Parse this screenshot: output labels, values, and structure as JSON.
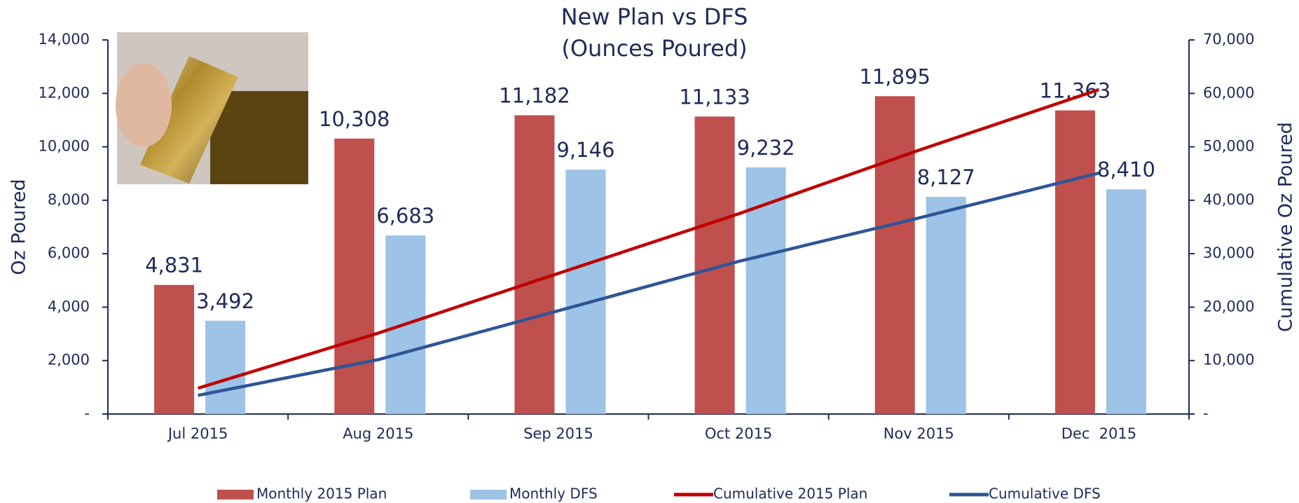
{
  "chart_data": {
    "type": "bar-line",
    "title": "New Plan vs DFS",
    "subtitle": "(Ounces Poured)",
    "ylabel": "Oz Poured",
    "y2label": "Cumulative Oz Poured",
    "categories": [
      "Jul 2015",
      "Aug 2015",
      "Sep 2015",
      "Oct 2015",
      "Nov 2015",
      "Dec  2015"
    ],
    "series": [
      {
        "name": "Monthly 2015 Plan",
        "type": "bar",
        "color": "#c0504d",
        "values": [
          4831,
          10308,
          11182,
          11133,
          11895,
          11363
        ],
        "value_labels": [
          "4,831",
          "10,308",
          "11,182",
          "11,133",
          "11,895",
          "11,363"
        ]
      },
      {
        "name": "Monthly DFS",
        "type": "bar",
        "color": "#9dc3e6",
        "values": [
          3492,
          6683,
          9146,
          9232,
          8127,
          8410
        ],
        "value_labels": [
          "3,492",
          "6,683",
          "9,146",
          "9,232",
          "8,127",
          "8,410"
        ]
      },
      {
        "name": "Cumulative 2015 Plan",
        "type": "line",
        "axis": "y2",
        "color": "#c00000",
        "values": [
          4831,
          15139,
          26321,
          37454,
          49349,
          60712
        ]
      },
      {
        "name": "Cumulative DFS",
        "type": "line",
        "axis": "y2",
        "color": "#2f5597",
        "values": [
          3492,
          10175,
          19321,
          28553,
          36680,
          45090
        ]
      }
    ],
    "ylim": [
      0,
      14000
    ],
    "yticks": [
      {
        "value": 0,
        "label": "-"
      },
      {
        "value": 2000,
        "label": "2,000"
      },
      {
        "value": 4000,
        "label": "4,000"
      },
      {
        "value": 6000,
        "label": "6,000"
      },
      {
        "value": 8000,
        "label": "8,000"
      },
      {
        "value": 10000,
        "label": "10,000"
      },
      {
        "value": 12000,
        "label": "12,000"
      },
      {
        "value": 14000,
        "label": "14,000"
      }
    ],
    "y2lim": [
      0,
      70000
    ],
    "y2ticks": [
      {
        "value": 0,
        "label": "-"
      },
      {
        "value": 10000,
        "label": "10,000"
      },
      {
        "value": 20000,
        "label": "20,000"
      },
      {
        "value": 30000,
        "label": "30,000"
      },
      {
        "value": 40000,
        "label": "40,000"
      },
      {
        "value": 50000,
        "label": "50,000"
      },
      {
        "value": 60000,
        "label": "60,000"
      },
      {
        "value": 70000,
        "label": "70,000"
      }
    ],
    "grid": false,
    "legend": "bottom"
  }
}
